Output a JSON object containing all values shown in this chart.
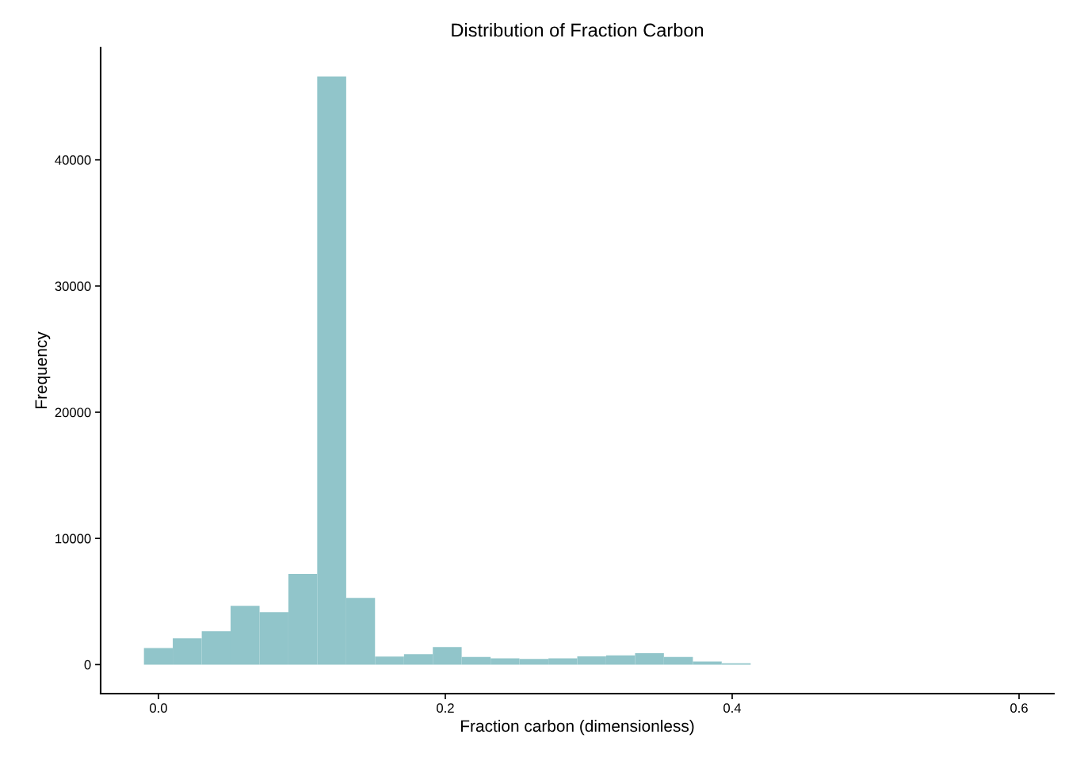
{
  "chart_data": {
    "type": "histogram",
    "title": "Distribution of Fraction Carbon",
    "xlabel": "Fraction carbon (dimensionless)",
    "ylabel": "Frequency",
    "bins": [
      -0.0101,
      0.01,
      0.0302,
      0.0503,
      0.0705,
      0.0906,
      0.1107,
      0.1309,
      0.151,
      0.1712,
      0.1913,
      0.2114,
      0.2316,
      0.2517,
      0.2719,
      0.292,
      0.3121,
      0.3323,
      0.3524,
      0.3726,
      0.3927,
      0.4129,
      0.433,
      0.4531,
      0.4733,
      0.4934,
      0.5136,
      0.5337,
      0.5538,
      0.574,
      0.5941
    ],
    "values": [
      1320,
      2080,
      2640,
      4660,
      4160,
      7180,
      46600,
      5290,
      630,
      820,
      1390,
      600,
      500,
      450,
      500,
      650,
      730,
      900,
      600,
      250,
      100,
      null,
      null,
      null,
      0,
      0,
      null,
      0,
      0,
      0
    ],
    "color": "#91c5ca",
    "xlim": [
      -0.0403,
      0.6243
    ],
    "xticks": [
      {
        "value": 0,
        "label": "0.0"
      },
      0.2,
      0.4,
      0.6
    ],
    "ylim": [
      -2300,
      48900
    ],
    "yticks": [
      0,
      10000,
      20000,
      30000,
      40000
    ],
    "grid": false,
    "legend": false
  }
}
